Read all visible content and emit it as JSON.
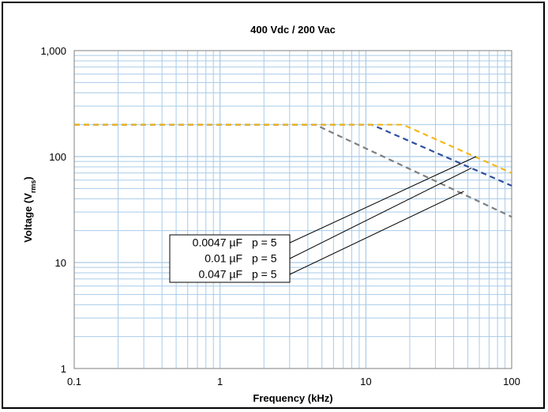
{
  "chart_data": {
    "type": "line",
    "title": "400 Vdc / 200 Vac",
    "xlabel": "Frequency (kHz)",
    "ylabel": {
      "main": "Voltage (V",
      "sub": "rms",
      "close": ")"
    },
    "x_scale": "log",
    "y_scale": "log",
    "xlim": [
      0.1,
      100
    ],
    "ylim": [
      1,
      1000
    ],
    "x_ticks": [
      {
        "value": 0.1,
        "label": "0.1"
      },
      {
        "value": 1,
        "label": "1"
      },
      {
        "value": 10,
        "label": "10"
      },
      {
        "value": 100,
        "label": "100"
      }
    ],
    "y_ticks": [
      {
        "value": 1,
        "label": "1"
      },
      {
        "value": 10,
        "label": "10"
      },
      {
        "value": 100,
        "label": "100"
      },
      {
        "value": 1000,
        "label": "1,000"
      }
    ],
    "grid": true,
    "series": [
      {
        "capacitance": "0.0047 µF",
        "pitch": "p = 5",
        "color": "#f2b81a",
        "points": [
          [
            0.1,
            200
          ],
          [
            18,
            200
          ],
          [
            100,
            70
          ]
        ]
      },
      {
        "capacitance": "0.01  µF",
        "pitch": "p = 5",
        "color": "#2e4f9e",
        "points": [
          [
            0.1,
            200
          ],
          [
            11,
            200
          ],
          [
            100,
            53
          ]
        ]
      },
      {
        "capacitance": "0.047 µF",
        "pitch": "p = 5",
        "color": "#7f7f7f",
        "points": [
          [
            0.1,
            200
          ],
          [
            4.5,
            200
          ],
          [
            100,
            27
          ]
        ]
      }
    ],
    "callouts": [
      {
        "series": 0,
        "target": [
          57,
          100
        ]
      },
      {
        "series": 1,
        "target": [
          53,
          78
        ]
      },
      {
        "series": 2,
        "target": [
          47,
          47
        ]
      }
    ],
    "legend_position": "center-left"
  },
  "colors": {
    "grid": "#a9cbe8",
    "axis": "#7f7f7f",
    "frame": "#000000"
  }
}
